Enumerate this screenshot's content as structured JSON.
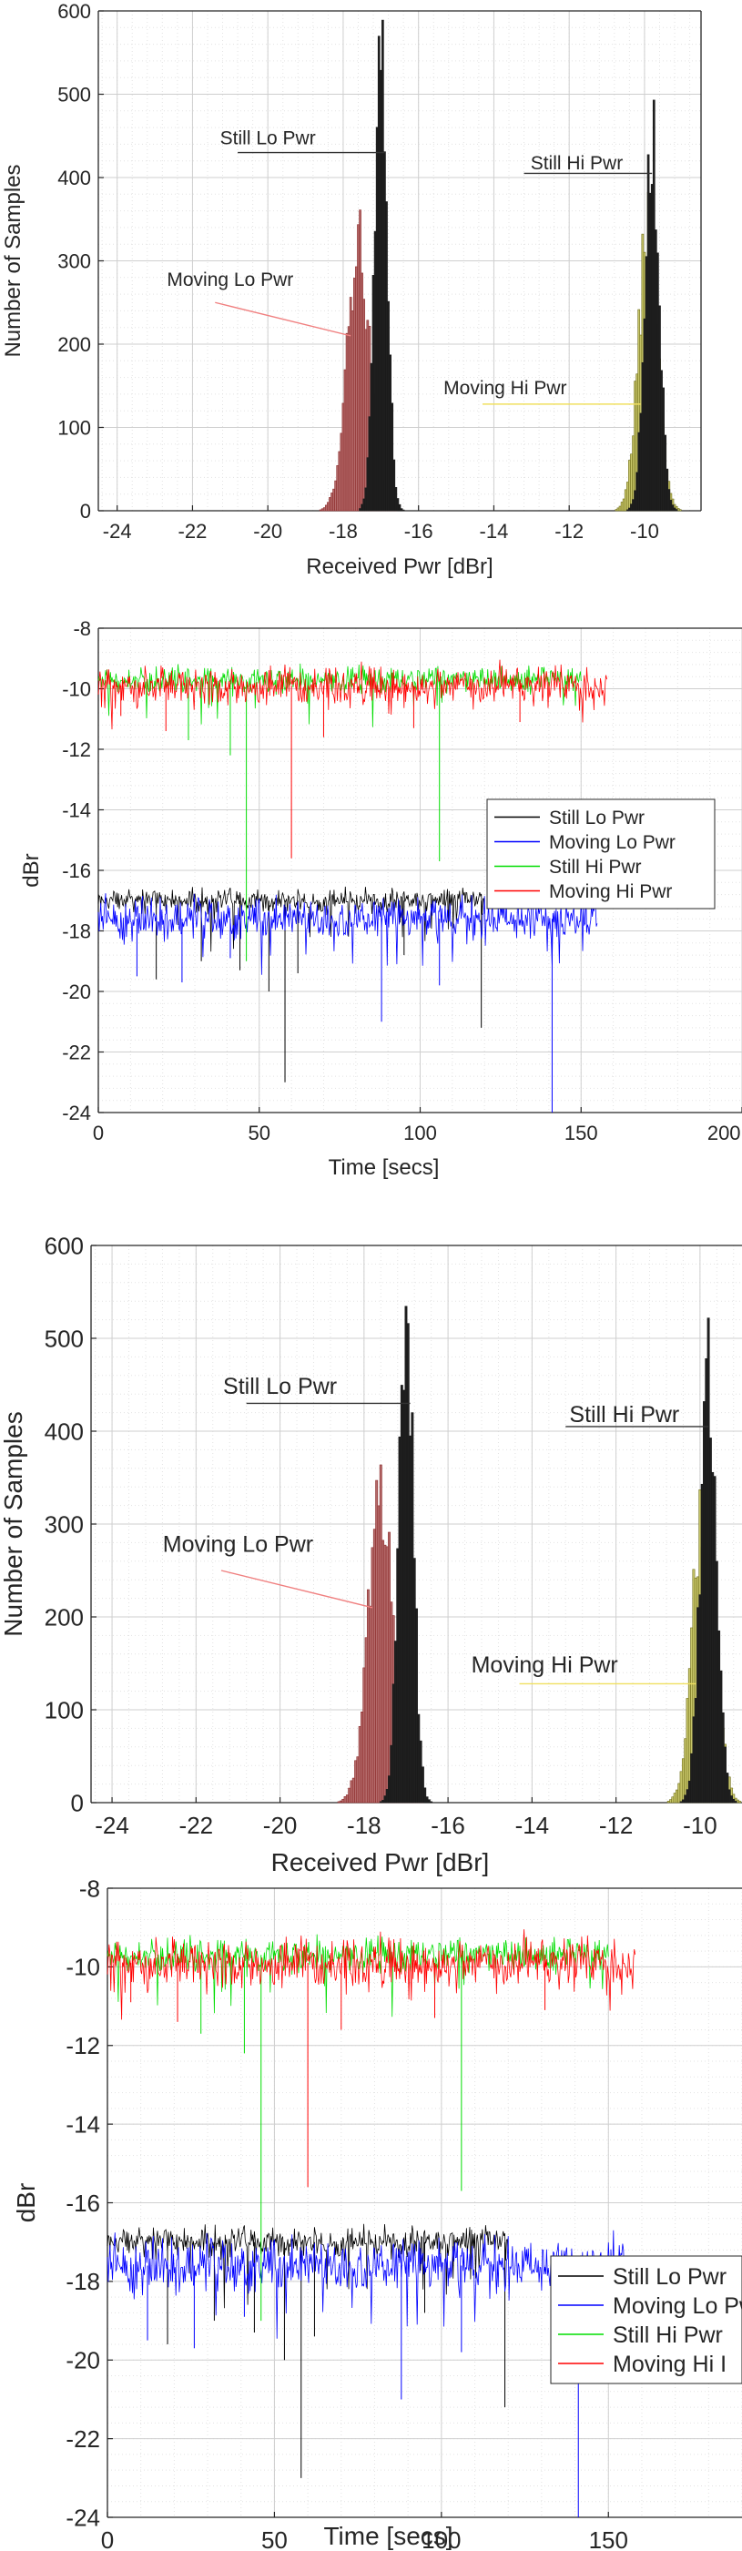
{
  "panels": [
    {
      "kind": "histogram",
      "xlabel": "Received Pwr [dBr]",
      "ylabel": "Number of Samples",
      "xlim": [
        -24.5,
        -8.5
      ],
      "ylim": [
        0,
        600
      ],
      "xticks": [
        -24,
        -22,
        -20,
        -18,
        -16,
        -14,
        -12,
        -10
      ],
      "yticks": [
        0,
        100,
        200,
        300,
        400,
        500,
        600
      ],
      "annotations": [
        "Still Lo Pwr",
        "Moving Lo Pwr",
        "Still Hi Pwr",
        "Moving Hi Pwr"
      ]
    },
    {
      "kind": "timeseries",
      "xlabel": "Time [secs]",
      "ylabel": "dBr",
      "xlim": [
        0,
        200
      ],
      "ylim": [
        -24,
        -8
      ],
      "xticks": [
        0,
        50,
        100,
        150,
        200
      ],
      "yticks": [
        -8,
        -10,
        -12,
        -14,
        -16,
        -18,
        -20,
        -22,
        -24
      ],
      "legend": [
        "Still Lo Pwr",
        "Moving Lo Pwr",
        "Still Hi Pwr",
        "Moving Hi Pwr"
      ]
    },
    {
      "kind": "histogram",
      "xlabel": "Received Pwr [dBr]",
      "ylabel": "Number of Samples",
      "xlim": [
        -24.5,
        -9
      ],
      "ylim": [
        0,
        600
      ],
      "xticks": [
        -24,
        -22,
        -20,
        -18,
        -16,
        -14,
        -12,
        -10
      ],
      "yticks": [
        0,
        100,
        200,
        300,
        400,
        500,
        600
      ],
      "annotations": [
        "Still Lo Pwr",
        "Moving Lo Pwr",
        "Still Hi Pwr",
        "Moving Hi Pwr"
      ]
    },
    {
      "kind": "timeseries",
      "xlabel": "Time [secs]",
      "ylabel": "dBr",
      "xlim": [
        0,
        190
      ],
      "ylim": [
        -24,
        -8
      ],
      "xticks": [
        0,
        50,
        100,
        150
      ],
      "yticks": [
        -8,
        -10,
        -12,
        -14,
        -16,
        -18,
        -20,
        -22,
        -24
      ],
      "legend": [
        "Still Lo Pwr",
        "Moving Lo Pwr",
        "Still Hi Pwr",
        "Moving Hi I"
      ]
    }
  ],
  "chart_data": [
    {
      "type": "bar",
      "xlabel": "Received Pwr [dBr]",
      "ylabel": "Number of Samples",
      "xlim": [
        -24.5,
        -8.5
      ],
      "ylim": [
        0,
        600
      ],
      "grid": true,
      "series": [
        {
          "name": "Still Lo Pwr",
          "color": "#1a1a1a",
          "mean": -17.0,
          "std": 0.17,
          "peak": 540
        },
        {
          "name": "Moving Lo Pwr",
          "color": "#8b2b2b",
          "mean": -17.6,
          "std": 0.3,
          "peak": 330
        },
        {
          "name": "Still Hi Pwr",
          "color": "#1a1a1a",
          "mean": -9.8,
          "std": 0.19,
          "peak": 480
        },
        {
          "name": "Moving Hi Pwr",
          "color": "#6f6d18",
          "mean": -9.9,
          "std": 0.26,
          "peak": 350
        }
      ]
    },
    {
      "type": "line",
      "xlabel": "Time [secs]",
      "ylabel": "dBr",
      "xlim": [
        0,
        200
      ],
      "ylim": [
        -24,
        -8
      ],
      "grid": true,
      "legend_position": "right",
      "series": [
        {
          "name": "Still Lo Pwr",
          "color": "#000000",
          "t_end": 120,
          "mean": -17.0,
          "noise": 0.17,
          "spikes": [
            [
              18,
              -19.6
            ],
            [
              32,
              -19.0
            ],
            [
              44,
              -19.3
            ],
            [
              53,
              -20.0
            ],
            [
              58,
              -23.0
            ],
            [
              62,
              -19.4
            ],
            [
              95,
              -18.8
            ],
            [
              119,
              -21.2
            ]
          ]
        },
        {
          "name": "Moving Lo Pwr",
          "color": "#0000ff",
          "t_end": 155,
          "mean": -17.6,
          "noise": 0.3,
          "spikes": [
            [
              12,
              -19.5
            ],
            [
              26,
              -19.7
            ],
            [
              41,
              -18.9
            ],
            [
              88,
              -21.0
            ],
            [
              106,
              -19.8
            ],
            [
              141,
              -24.0
            ]
          ]
        },
        {
          "name": "Still Hi Pwr",
          "color": "#00dd00",
          "t_end": 150,
          "mean": -9.7,
          "noise": 0.18,
          "spikes": [
            [
              28,
              -11.7
            ],
            [
              41,
              -12.2
            ],
            [
              46,
              -19.0
            ],
            [
              106,
              -15.7
            ]
          ]
        },
        {
          "name": "Moving Hi Pwr",
          "color": "#ff0000",
          "t_end": 158,
          "mean": -9.9,
          "noise": 0.28,
          "spikes": [
            [
              7,
              -10.9
            ],
            [
              21,
              -11.4
            ],
            [
              60,
              -15.6
            ],
            [
              70,
              -11.6
            ],
            [
              98,
              -11.3
            ],
            [
              131,
              -11.1
            ]
          ]
        }
      ]
    },
    {
      "type": "bar",
      "xlabel": "Received Pwr [dBr]",
      "ylabel": "Number of Samples",
      "xlim": [
        -24.5,
        -9
      ],
      "ylim": [
        0,
        600
      ],
      "grid": true,
      "series": [
        {
          "name": "Still Lo Pwr",
          "color": "#1a1a1a",
          "mean": -17.0,
          "std": 0.17,
          "peak": 540
        },
        {
          "name": "Moving Lo Pwr",
          "color": "#8b2b2b",
          "mean": -17.6,
          "std": 0.3,
          "peak": 330
        },
        {
          "name": "Still Hi Pwr",
          "color": "#1a1a1a",
          "mean": -9.8,
          "std": 0.19,
          "peak": 480
        },
        {
          "name": "Moving Hi Pwr",
          "color": "#6f6d18",
          "mean": -9.9,
          "std": 0.26,
          "peak": 350
        }
      ]
    },
    {
      "type": "line",
      "xlabel": "Time [secs]",
      "ylabel": "dBr",
      "xlim": [
        0,
        190
      ],
      "ylim": [
        -24,
        -8
      ],
      "grid": true,
      "legend_position": "right",
      "series": [
        {
          "name": "Still Lo Pwr",
          "color": "#000000",
          "t_end": 120,
          "mean": -17.0,
          "noise": 0.17,
          "spikes": [
            [
              18,
              -19.6
            ],
            [
              32,
              -19.0
            ],
            [
              44,
              -19.3
            ],
            [
              53,
              -20.0
            ],
            [
              58,
              -23.0
            ],
            [
              62,
              -19.4
            ],
            [
              95,
              -18.8
            ],
            [
              119,
              -21.2
            ]
          ]
        },
        {
          "name": "Moving Lo Pwr",
          "color": "#0000ff",
          "t_end": 155,
          "mean": -17.6,
          "noise": 0.3,
          "spikes": [
            [
              12,
              -19.5
            ],
            [
              26,
              -19.7
            ],
            [
              41,
              -18.9
            ],
            [
              88,
              -21.0
            ],
            [
              106,
              -19.8
            ],
            [
              141,
              -24.0
            ]
          ]
        },
        {
          "name": "Still Hi Pwr",
          "color": "#00dd00",
          "t_end": 150,
          "mean": -9.7,
          "noise": 0.18,
          "spikes": [
            [
              28,
              -11.7
            ],
            [
              41,
              -12.2
            ],
            [
              46,
              -19.0
            ],
            [
              106,
              -15.7
            ]
          ]
        },
        {
          "name": "Moving Hi Pwr",
          "color": "#ff0000",
          "t_end": 158,
          "mean": -9.9,
          "noise": 0.28,
          "spikes": [
            [
              7,
              -10.9
            ],
            [
              21,
              -11.4
            ],
            [
              60,
              -15.6
            ],
            [
              70,
              -11.6
            ],
            [
              98,
              -11.3
            ],
            [
              131,
              -11.1
            ]
          ]
        }
      ]
    }
  ]
}
